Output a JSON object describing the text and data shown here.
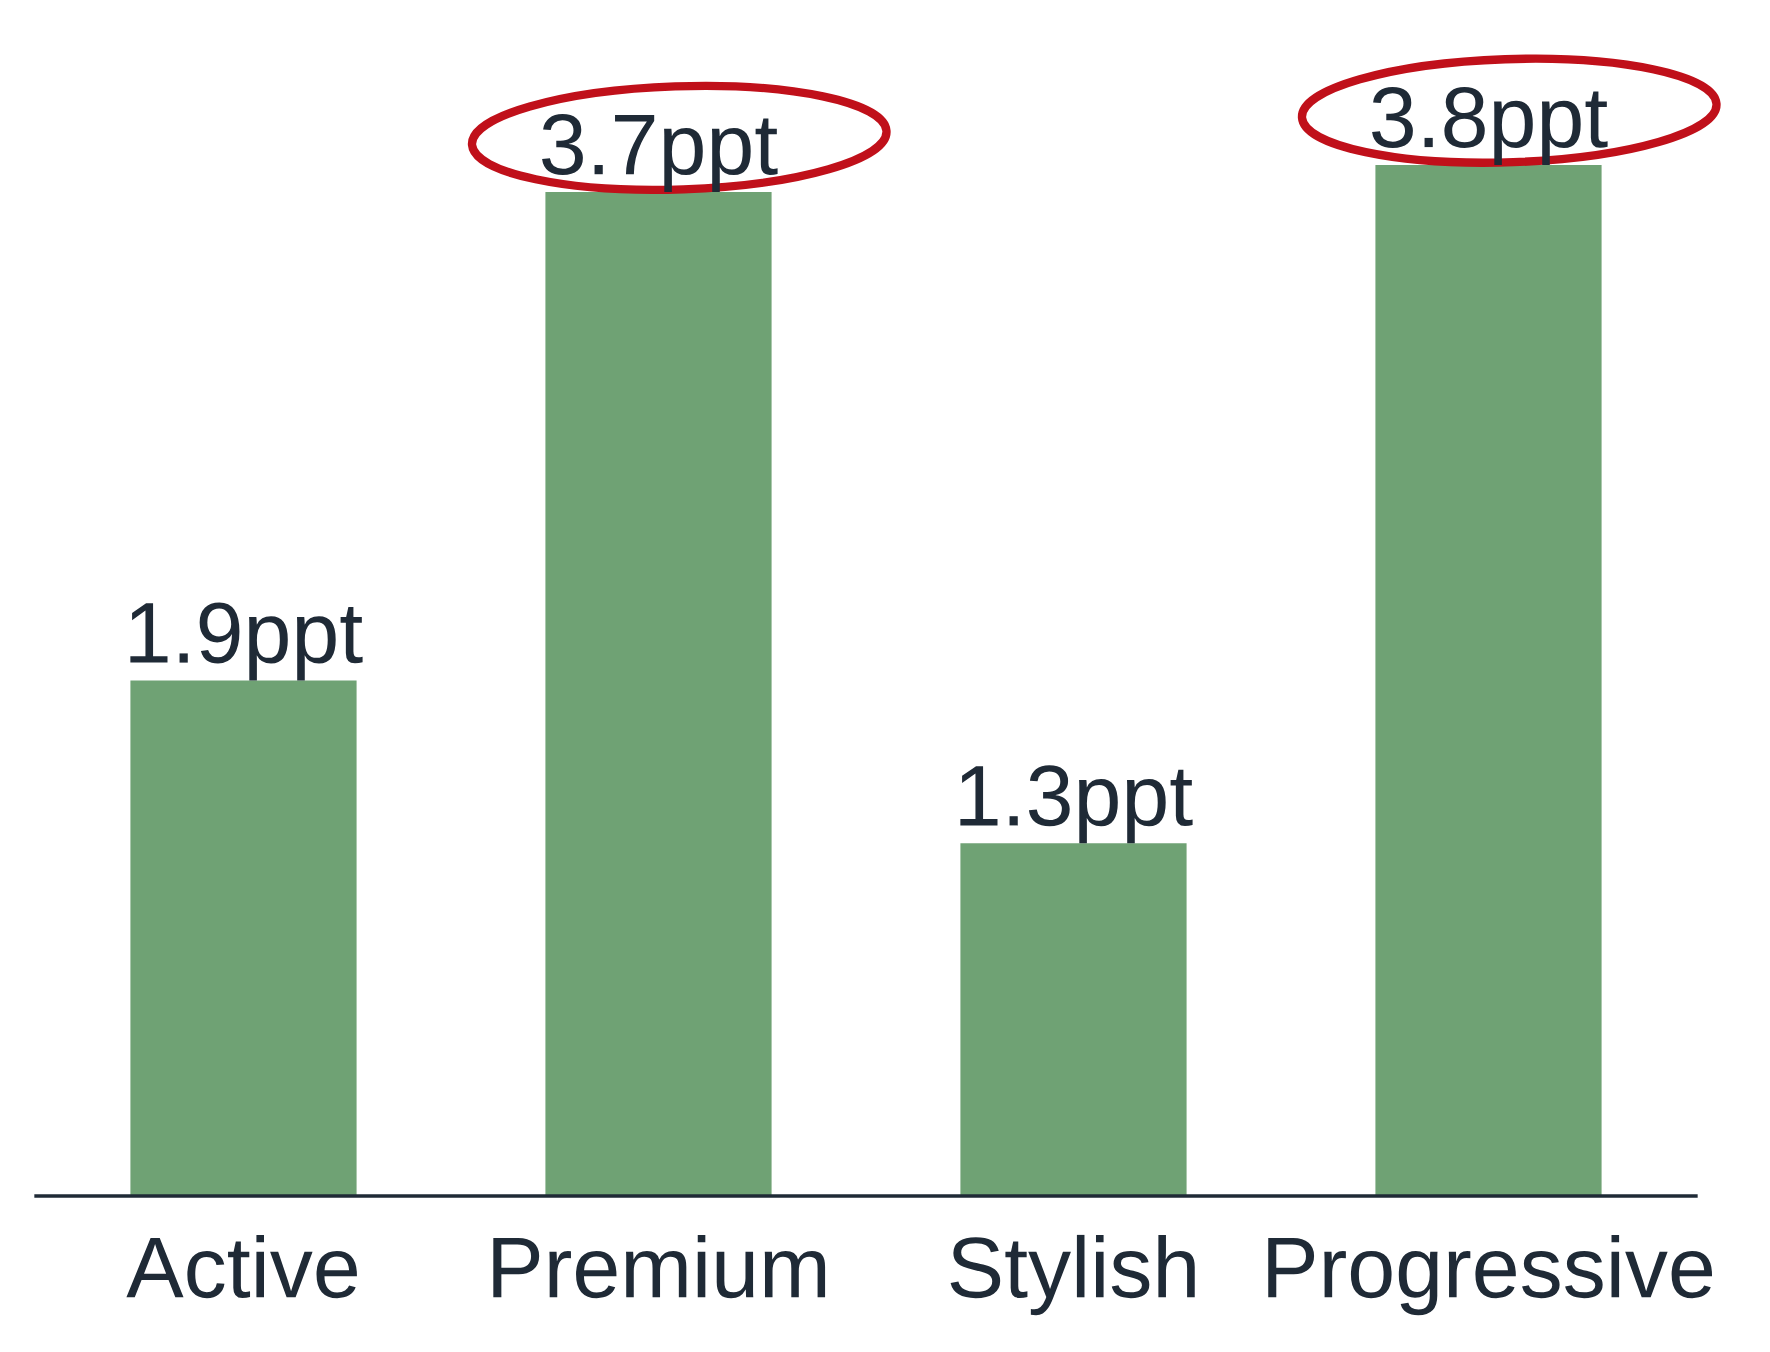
{
  "chart_data": {
    "type": "bar",
    "categories": [
      "Active",
      "Premium",
      "Stylish",
      "Progressive"
    ],
    "values": [
      1.9,
      3.7,
      1.3,
      3.8
    ],
    "value_labels": [
      "1.9ppt",
      "3.7ppt",
      "1.3ppt",
      "3.8ppt"
    ],
    "color": "#6fa274",
    "tick_labels": "x",
    "grid": false,
    "legend": false
  }
}
